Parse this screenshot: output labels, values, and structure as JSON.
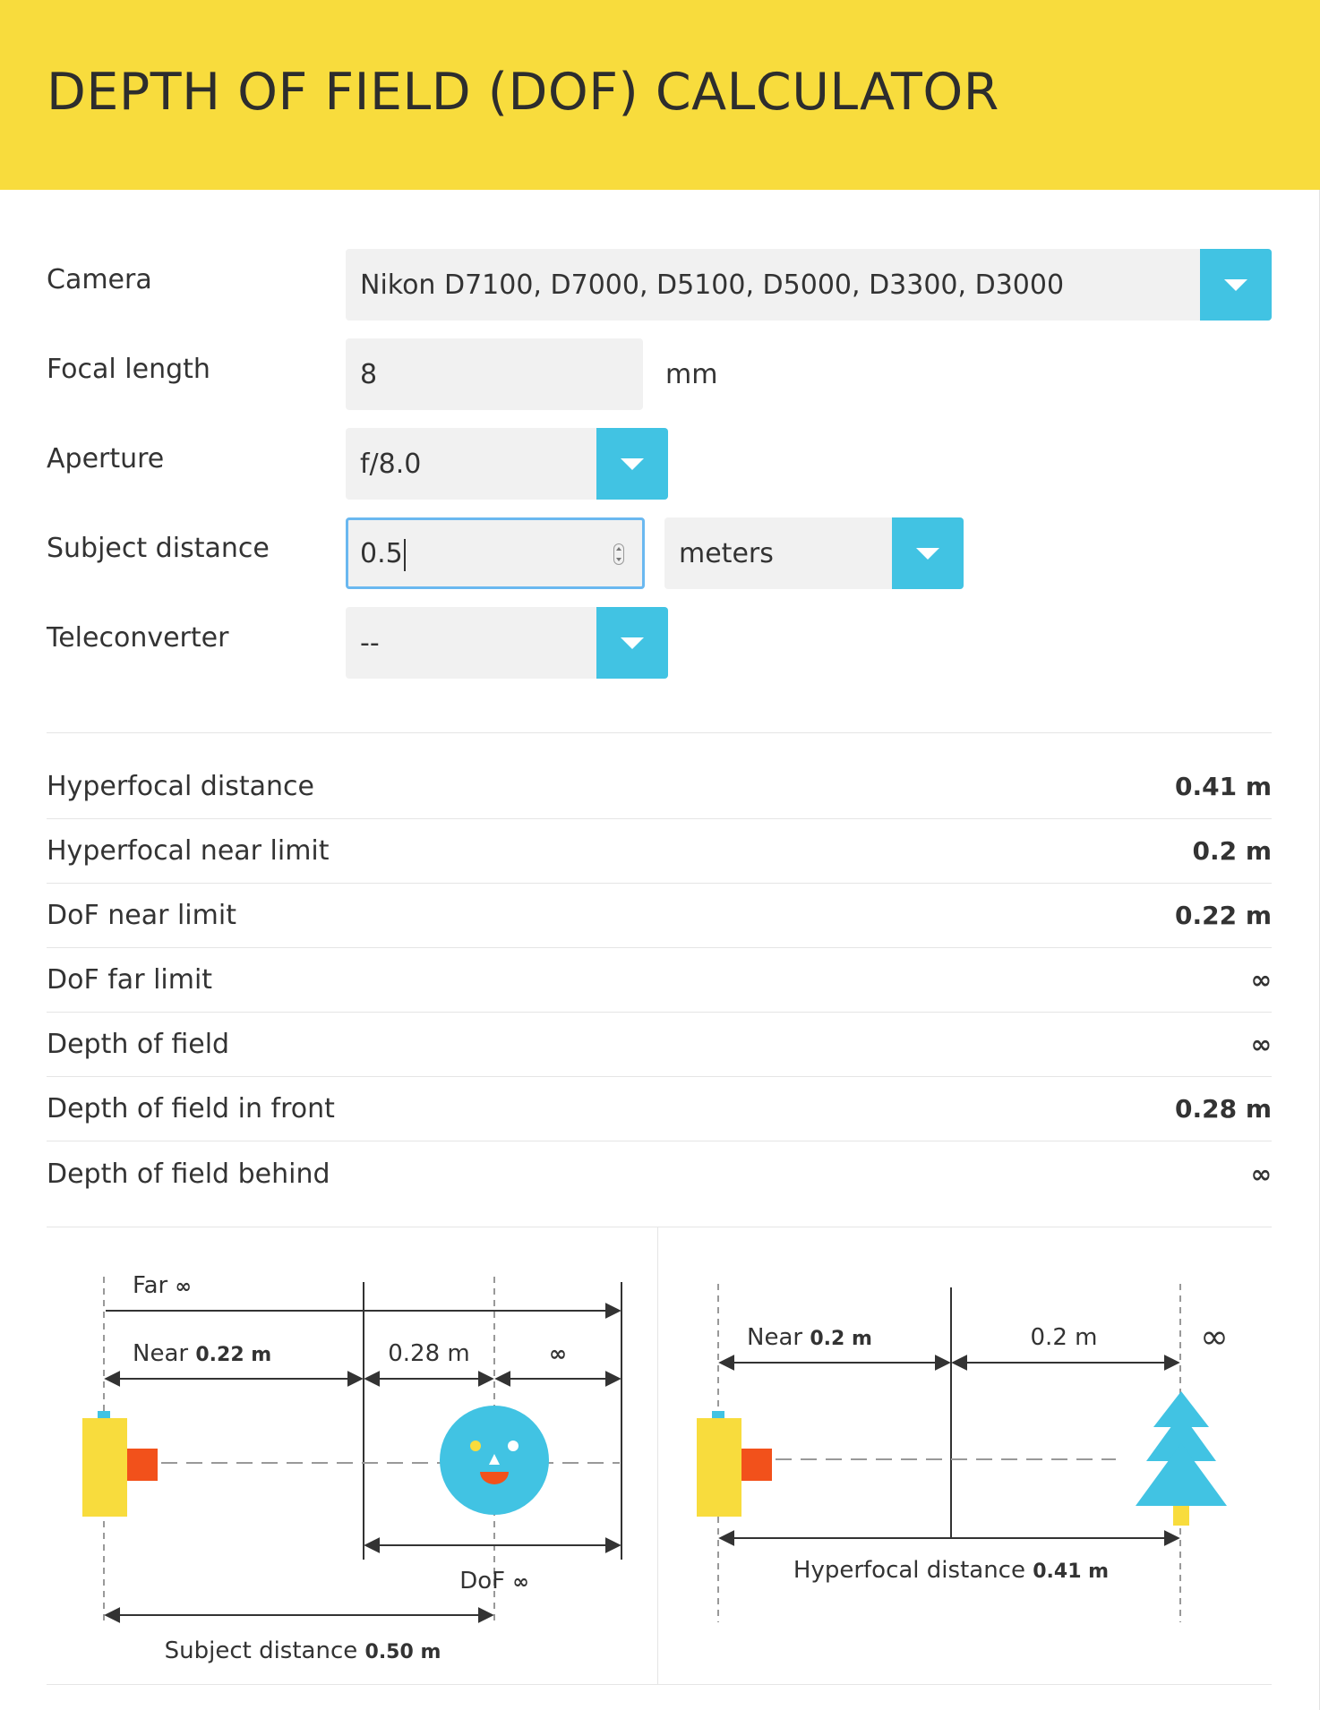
{
  "header": {
    "title": "DEPTH OF FIELD (DOF) CALCULATOR"
  },
  "form": {
    "camera": {
      "label": "Camera",
      "value": "Nikon D7100, D7000, D5100, D5000, D3300, D3000"
    },
    "focal_length": {
      "label": "Focal length",
      "value": "8",
      "unit": "mm"
    },
    "aperture": {
      "label": "Aperture",
      "value": "f/8.0"
    },
    "subject_distance": {
      "label": "Subject distance",
      "value": "0.5",
      "unit": "meters"
    },
    "teleconverter": {
      "label": "Teleconverter",
      "value": "--"
    }
  },
  "results": [
    {
      "label": "Hyperfocal distance",
      "value": "0.41 m"
    },
    {
      "label": "Hyperfocal near limit",
      "value": "0.2 m"
    },
    {
      "label": "DoF near limit",
      "value": "0.22 m"
    },
    {
      "label": "DoF far limit",
      "value": "∞"
    },
    {
      "label": "Depth of field",
      "value": "∞"
    },
    {
      "label": "Depth of field in front",
      "value": "0.28 m"
    },
    {
      "label": "Depth of field behind",
      "value": "∞"
    }
  ],
  "dof_diagram": {
    "far_label": "Far",
    "far_value": "∞",
    "near_label": "Near",
    "near_value": "0.22 m",
    "front_value": "0.28 m",
    "behind_value": "∞",
    "dof_label": "DoF",
    "dof_value": "∞",
    "subject_label": "Subject distance",
    "subject_value": "0.50 m"
  },
  "hyperfocal_diagram": {
    "near_label": "Near",
    "near_value": "0.2 m",
    "span_value": "0.2 m",
    "infinity": "∞",
    "hyperfocal_label": "Hyperfocal distance",
    "hyperfocal_value": "0.41 m"
  },
  "colors": {
    "header_bg": "#f8dc3d",
    "accent": "#41c3e3",
    "camera_body": "#f8dc3d",
    "lens": "#f2511b",
    "focus_border": "#6ab8f0"
  },
  "icons": [
    "chevron-down-icon",
    "spinner-icon",
    "camera-icon",
    "face-icon",
    "tree-icon"
  ]
}
